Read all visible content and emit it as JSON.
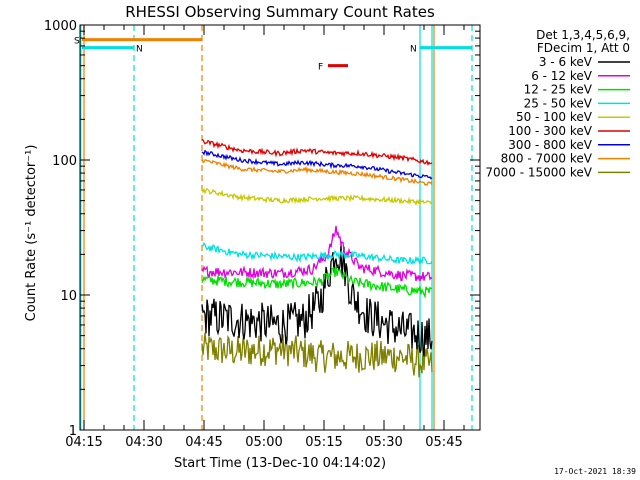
{
  "chart_data": {
    "type": "line",
    "title": "RHESSI Observing Summary Count Rates",
    "xlabel": "Start Time (13-Dec-10 04:14:02)",
    "ylabel": "Count Rate (s⁻¹ detector⁻¹)",
    "yscale": "log",
    "ylim": [
      1,
      1000
    ],
    "xlim_minutes": [
      0,
      100
    ],
    "x_tick_labels": [
      "04:15",
      "04:30",
      "04:45",
      "05:00",
      "05:15",
      "05:30",
      "05:45"
    ],
    "x_tick_minutes": [
      1,
      16,
      31,
      46,
      61,
      76,
      91
    ],
    "y_tick_labels": [
      "1",
      "10",
      "100",
      "1000"
    ],
    "y_tick_values": [
      1,
      10,
      100,
      1000
    ],
    "legend_header": [
      "Det 1,3,4,5,6,9,",
      "FDecim 1, Att 0"
    ],
    "legend_position": "right",
    "data_start_minute": 30.5,
    "data_end_minute": 88,
    "series": [
      {
        "name": "3 - 6 keV",
        "color": "#000000",
        "keyframes": [
          [
            30.5,
            7.0
          ],
          [
            40,
            6.5
          ],
          [
            50,
            6.0
          ],
          [
            56,
            6.5
          ],
          [
            60,
            9
          ],
          [
            62,
            14
          ],
          [
            64,
            22
          ],
          [
            66,
            17
          ],
          [
            68,
            10
          ],
          [
            72,
            7
          ],
          [
            80,
            5.5
          ],
          [
            88,
            4.8
          ]
        ],
        "noise": 0.35,
        "step": 0.25
      },
      {
        "name": "6 - 12 keV",
        "color": "#e000e0",
        "keyframes": [
          [
            30.5,
            15
          ],
          [
            50,
            14.5
          ],
          [
            58,
            15.5
          ],
          [
            62,
            20
          ],
          [
            64,
            31
          ],
          [
            66,
            22
          ],
          [
            70,
            16
          ],
          [
            80,
            14
          ],
          [
            88,
            13.5
          ]
        ],
        "noise": 0.09,
        "step": 0.25
      },
      {
        "name": "12 - 25 keV",
        "color": "#00e000",
        "keyframes": [
          [
            30.5,
            13
          ],
          [
            50,
            12
          ],
          [
            60,
            12.5
          ],
          [
            64,
            15
          ],
          [
            68,
            12.5
          ],
          [
            80,
            11
          ],
          [
            88,
            10.5
          ]
        ],
        "noise": 0.09,
        "step": 0.25
      },
      {
        "name": "25 - 50 keV",
        "color": "#00e0e0",
        "keyframes": [
          [
            30.5,
            23
          ],
          [
            40,
            20
          ],
          [
            55,
            19
          ],
          [
            64,
            20
          ],
          [
            70,
            19.5
          ],
          [
            80,
            18
          ],
          [
            88,
            18
          ]
        ],
        "noise": 0.06,
        "step": 0.25
      },
      {
        "name": "50 - 100 keV",
        "color": "#c8c800",
        "keyframes": [
          [
            30.5,
            60
          ],
          [
            40,
            53
          ],
          [
            50,
            50
          ],
          [
            60,
            52
          ],
          [
            70,
            52
          ],
          [
            80,
            50
          ],
          [
            88,
            48
          ]
        ],
        "noise": 0.04,
        "step": 0.25
      },
      {
        "name": "100 - 300 keV",
        "color": "#e00000",
        "keyframes": [
          [
            30.5,
            138
          ],
          [
            40,
            118
          ],
          [
            50,
            112
          ],
          [
            56,
            118
          ],
          [
            62,
            113
          ],
          [
            70,
            112
          ],
          [
            80,
            104
          ],
          [
            88,
            95
          ]
        ],
        "noise": 0.04,
        "step": 0.25
      },
      {
        "name": "300 - 800 keV",
        "color": "#0000e0",
        "keyframes": [
          [
            30.5,
            115
          ],
          [
            40,
            100
          ],
          [
            50,
            93
          ],
          [
            56,
            96
          ],
          [
            62,
            92
          ],
          [
            70,
            90
          ],
          [
            80,
            80
          ],
          [
            88,
            74
          ]
        ],
        "noise": 0.035,
        "step": 0.25
      },
      {
        "name": "800 - 7000 keV",
        "color": "#f08000",
        "keyframes": [
          [
            30.5,
            100
          ],
          [
            40,
            86
          ],
          [
            50,
            82
          ],
          [
            56,
            85
          ],
          [
            62,
            82
          ],
          [
            70,
            79
          ],
          [
            80,
            72
          ],
          [
            88,
            66
          ]
        ],
        "noise": 0.035,
        "step": 0.25
      },
      {
        "name": "7000 - 15000 keV",
        "color": "#808000",
        "keyframes": [
          [
            30.5,
            4.0
          ],
          [
            40,
            3.8
          ],
          [
            50,
            4.0
          ],
          [
            60,
            3.5
          ],
          [
            70,
            3.5
          ],
          [
            80,
            3.5
          ],
          [
            88,
            3.0
          ]
        ],
        "noise": 0.28,
        "step": 0.25
      }
    ],
    "flag_bars": [
      {
        "label": "S",
        "color": "#f08000",
        "start": 0.5,
        "end": 30.5,
        "value": 780
      },
      {
        "label": "N",
        "color": "#00e0e0",
        "start": 0.5,
        "end": 13.5,
        "value": 680
      },
      {
        "label": "N",
        "color": "#00e0e0",
        "start": 85,
        "end": 98,
        "value": 680
      },
      {
        "label": "F",
        "color": "#e00000",
        "start": 62,
        "end": 67,
        "value": 500
      }
    ],
    "vertical_lines": [
      {
        "minute": 1.0,
        "color": "#f08000",
        "style": "solid"
      },
      {
        "minute": 0.2,
        "color": "#00e0e0",
        "style": "solid"
      },
      {
        "minute": 13.5,
        "color": "#00e0e0",
        "style": "dashed"
      },
      {
        "minute": 30.5,
        "color": "#f08000",
        "style": "dashed"
      },
      {
        "minute": 85.0,
        "color": "#00e0e0",
        "style": "solid"
      },
      {
        "minute": 88.0,
        "color": "#00e0e0",
        "style": "solid"
      },
      {
        "minute": 88.5,
        "color": "#f08000",
        "style": "solid"
      },
      {
        "minute": 98.0,
        "color": "#00e0e0",
        "style": "dashed"
      }
    ],
    "footer_date": "17-Oct-2021 18:39"
  }
}
